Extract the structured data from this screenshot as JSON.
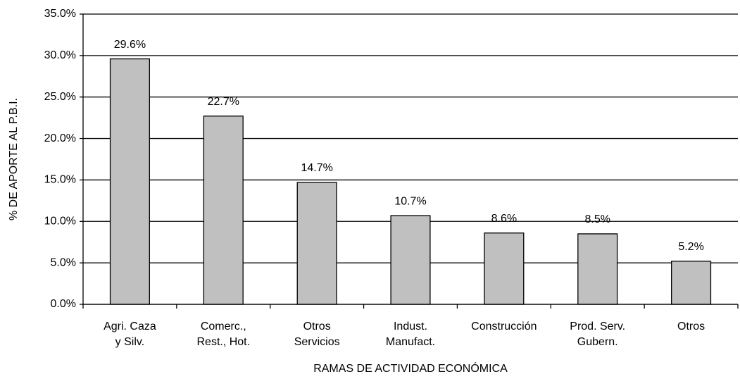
{
  "chart_data": {
    "type": "bar",
    "y_label": "% DE APORTE AL P.B.I.",
    "x_label": "RAMAS DE ACTIVIDAD ECONÓMICA",
    "categories": [
      [
        "Agri. Caza",
        "y Silv."
      ],
      [
        "Comerc.,",
        "Rest., Hot."
      ],
      [
        "Otros",
        "Servicios"
      ],
      [
        "Indust.",
        "Manufact."
      ],
      [
        "Construcción"
      ],
      [
        "Prod. Serv.",
        "Gubern."
      ],
      [
        "Otros"
      ]
    ],
    "values": [
      29.6,
      22.7,
      14.7,
      10.7,
      8.6,
      8.5,
      5.2
    ],
    "value_labels": [
      "29.6%",
      "22.7%",
      "14.7%",
      "10.7%",
      "8.6%",
      "8.5%",
      "5.2%"
    ],
    "color": "#c0c0c0",
    "ylim": [
      0,
      35
    ],
    "yticks": [
      {
        "value": 0,
        "label": "0.0%"
      },
      {
        "value": 5,
        "label": "5.0%"
      },
      {
        "value": 10,
        "label": "10.0%"
      },
      {
        "value": 15,
        "label": "15.0%"
      },
      {
        "value": 20,
        "label": "20.0%"
      },
      {
        "value": 25,
        "label": "25.0%"
      },
      {
        "value": 30,
        "label": "30.0%"
      },
      {
        "value": 35,
        "label": "35.0%"
      }
    ],
    "grid": true
  }
}
